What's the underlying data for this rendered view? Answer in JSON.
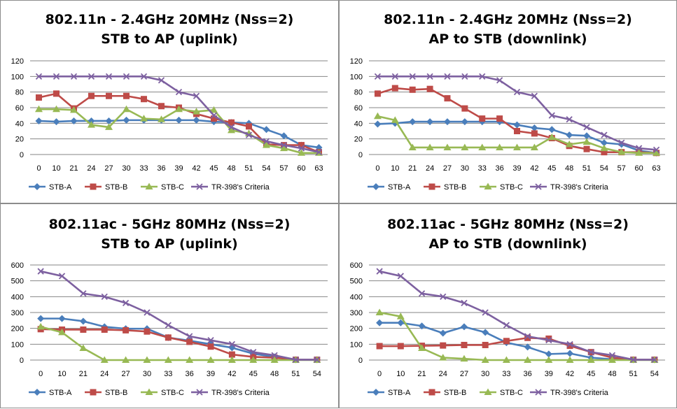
{
  "colors": {
    "STB-A": "#4a7ebb",
    "STB-B": "#be4b48",
    "STB-C": "#98b954",
    "TR-398's Criteria": "#7d60a0",
    "grid": "#868686",
    "panel_border": "#8c8c8c"
  },
  "chart_data": [
    {
      "type": "line",
      "title": "802.11n - 2.4GHz 20MHz (Nss=2)",
      "subtitle": "STB to AP (uplink)",
      "categories": [
        "0",
        "10",
        "21",
        "24",
        "27",
        "30",
        "33",
        "36",
        "39",
        "42",
        "45",
        "48",
        "51",
        "54",
        "57",
        "60",
        "63"
      ],
      "yticks": [
        0,
        20,
        40,
        60,
        80,
        100,
        120
      ],
      "ylim": [
        0,
        120
      ],
      "grid": true,
      "legend": "bottom",
      "series": [
        {
          "name": "STB-A",
          "marker": "diamond",
          "values": [
            43,
            42,
            43,
            43,
            43,
            44,
            44,
            44,
            44,
            44,
            42,
            41,
            40,
            32,
            24,
            12,
            9
          ]
        },
        {
          "name": "STB-B",
          "marker": "square",
          "values": [
            73,
            78,
            59,
            75,
            75,
            75,
            71,
            62,
            60,
            52,
            46,
            41,
            36,
            13,
            12,
            12,
            3
          ]
        },
        {
          "name": "STB-C",
          "marker": "triangle",
          "values": [
            58,
            58,
            57,
            38,
            35,
            58,
            46,
            45,
            58,
            55,
            57,
            31,
            27,
            12,
            8,
            2,
            2
          ]
        },
        {
          "name": "TR-398's Criteria",
          "marker": "x",
          "values": [
            100,
            100,
            100,
            100,
            100,
            100,
            100,
            95,
            80,
            75,
            50,
            35,
            25,
            17,
            12,
            8,
            3
          ]
        }
      ]
    },
    {
      "type": "line",
      "title": "802.11n - 2.4GHz 20MHz (Nss=2)",
      "subtitle": "AP to STB (downlink)",
      "categories": [
        "0",
        "10",
        "21",
        "24",
        "27",
        "30",
        "33",
        "36",
        "39",
        "42",
        "45",
        "48",
        "51",
        "54",
        "57",
        "60",
        "63"
      ],
      "yticks": [
        0,
        20,
        40,
        60,
        80,
        100,
        120
      ],
      "ylim": [
        0,
        120
      ],
      "grid": true,
      "legend": "bottom",
      "series": [
        {
          "name": "STB-A",
          "marker": "diamond",
          "values": [
            39,
            40,
            42,
            42,
            42,
            42,
            42,
            42,
            38,
            34,
            32,
            25,
            24,
            15,
            13,
            5,
            2
          ]
        },
        {
          "name": "STB-B",
          "marker": "square",
          "values": [
            78,
            85,
            83,
            84,
            72,
            59,
            46,
            46,
            30,
            27,
            21,
            11,
            7,
            3,
            3,
            3,
            2
          ]
        },
        {
          "name": "STB-C",
          "marker": "triangle",
          "values": [
            49,
            44,
            9,
            9,
            9,
            9,
            9,
            9,
            9,
            9,
            22,
            13,
            16,
            8,
            3,
            2,
            2
          ]
        },
        {
          "name": "TR-398's Criteria",
          "marker": "x",
          "values": [
            100,
            100,
            100,
            100,
            100,
            100,
            100,
            95,
            80,
            75,
            50,
            45,
            35,
            25,
            15,
            8,
            6
          ]
        }
      ]
    },
    {
      "type": "line",
      "title": "802.11ac - 5GHz 80MHz (Nss=2)",
      "subtitle": "STB to AP (uplink)",
      "categories": [
        "0",
        "10",
        "21",
        "24",
        "27",
        "30",
        "33",
        "36",
        "39",
        "42",
        "45",
        "48",
        "51",
        "54"
      ],
      "yticks": [
        0,
        100,
        200,
        300,
        400,
        500,
        600
      ],
      "ylim": [
        0,
        600
      ],
      "grid": true,
      "legend": "bottom",
      "series": [
        {
          "name": "STB-A",
          "marker": "diamond",
          "values": [
            262,
            262,
            245,
            210,
            198,
            198,
            142,
            122,
            100,
            78,
            40,
            20,
            2,
            2
          ]
        },
        {
          "name": "STB-B",
          "marker": "square",
          "values": [
            195,
            192,
            192,
            192,
            188,
            180,
            142,
            115,
            85,
            35,
            20,
            15,
            2,
            2
          ]
        },
        {
          "name": "STB-C",
          "marker": "triangle",
          "values": [
            210,
            175,
            75,
            0,
            0,
            0,
            0,
            0,
            0,
            0,
            0,
            0,
            0,
            0
          ]
        },
        {
          "name": "TR-398's Criteria",
          "marker": "x",
          "values": [
            560,
            530,
            420,
            400,
            360,
            300,
            220,
            150,
            125,
            100,
            50,
            30,
            2,
            2
          ]
        }
      ]
    },
    {
      "type": "line",
      "title": "802.11ac - 5GHz 80MHz (Nss=2)",
      "subtitle": "AP to STB (downlink)",
      "categories": [
        "0",
        "10",
        "21",
        "24",
        "27",
        "30",
        "33",
        "36",
        "39",
        "42",
        "45",
        "48",
        "51",
        "54"
      ],
      "yticks": [
        0,
        100,
        200,
        300,
        400,
        500,
        600
      ],
      "ylim": [
        0,
        600
      ],
      "grid": true,
      "legend": "bottom",
      "series": [
        {
          "name": "STB-A",
          "marker": "diamond",
          "values": [
            235,
            235,
            215,
            170,
            210,
            175,
            110,
            82,
            38,
            42,
            15,
            5,
            2,
            2
          ]
        },
        {
          "name": "STB-B",
          "marker": "square",
          "values": [
            88,
            88,
            90,
            92,
            95,
            95,
            120,
            140,
            135,
            90,
            50,
            15,
            2,
            2
          ]
        },
        {
          "name": "STB-C",
          "marker": "triangle",
          "values": [
            300,
            275,
            75,
            15,
            8,
            0,
            0,
            0,
            0,
            0,
            0,
            0,
            0,
            0
          ]
        },
        {
          "name": "TR-398's Criteria",
          "marker": "x",
          "values": [
            560,
            530,
            420,
            400,
            360,
            300,
            220,
            150,
            125,
            100,
            50,
            30,
            2,
            2
          ]
        }
      ]
    }
  ]
}
